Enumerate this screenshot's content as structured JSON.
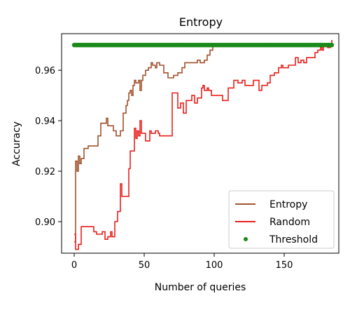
{
  "chart_data": {
    "type": "line",
    "title": "Entropy",
    "xlabel": "Number of queries",
    "ylabel": "Accuracy",
    "xlim": [
      -9,
      189
    ],
    "ylim": [
      0.8875,
      0.9745
    ],
    "xticks": [
      0,
      50,
      100,
      150
    ],
    "yticks": [
      0.9,
      0.92,
      0.94,
      0.96
    ],
    "xtick_labels": [
      "0",
      "50",
      "100",
      "150"
    ],
    "ytick_labels": [
      "0.90",
      "0.92",
      "0.94",
      "0.96"
    ],
    "grid": false,
    "legend_position": "lower-right",
    "series": [
      {
        "name": "Entropy",
        "color": "#a0522d",
        "style": "line",
        "points": [
          [
            0,
            0.892
          ],
          [
            1,
            0.924
          ],
          [
            2,
            0.92
          ],
          [
            3,
            0.926
          ],
          [
            4,
            0.923
          ],
          [
            5,
            0.925
          ],
          [
            7,
            0.929
          ],
          [
            10,
            0.93
          ],
          [
            14,
            0.93
          ],
          [
            17,
            0.934
          ],
          [
            19,
            0.939
          ],
          [
            22,
            0.939
          ],
          [
            23,
            0.941
          ],
          [
            24,
            0.938
          ],
          [
            28,
            0.936
          ],
          [
            30,
            0.934
          ],
          [
            32,
            0.934
          ],
          [
            33,
            0.936
          ],
          [
            35,
            0.943
          ],
          [
            37,
            0.946
          ],
          [
            38,
            0.948
          ],
          [
            39,
            0.951
          ],
          [
            40,
            0.952
          ],
          [
            41,
            0.95
          ],
          [
            42,
            0.954
          ],
          [
            43,
            0.956
          ],
          [
            44,
            0.955
          ],
          [
            46,
            0.956
          ],
          [
            47,
            0.952
          ],
          [
            48,
            0.956
          ],
          [
            49,
            0.958
          ],
          [
            51,
            0.96
          ],
          [
            53,
            0.961
          ],
          [
            55,
            0.963
          ],
          [
            56,
            0.962
          ],
          [
            58,
            0.961
          ],
          [
            59,
            0.963
          ],
          [
            61,
            0.962
          ],
          [
            64,
            0.959
          ],
          [
            66,
            0.959
          ],
          [
            67,
            0.957
          ],
          [
            71,
            0.958
          ],
          [
            74,
            0.959
          ],
          [
            77,
            0.961
          ],
          [
            79,
            0.963
          ],
          [
            88,
            0.964
          ],
          [
            90,
            0.963
          ],
          [
            93,
            0.964
          ],
          [
            95,
            0.966
          ],
          [
            97,
            0.968
          ],
          [
            99,
            0.97
          ]
        ]
      },
      {
        "name": "Random",
        "color": "#e8201c",
        "style": "line",
        "points": [
          [
            0,
            0.895
          ],
          [
            1,
            0.889
          ],
          [
            3,
            0.891
          ],
          [
            5,
            0.898
          ],
          [
            12,
            0.898
          ],
          [
            14,
            0.896
          ],
          [
            16,
            0.895
          ],
          [
            19,
            0.895
          ],
          [
            20,
            0.896
          ],
          [
            22,
            0.893
          ],
          [
            24,
            0.894
          ],
          [
            26,
            0.896
          ],
          [
            27,
            0.894
          ],
          [
            29,
            0.9
          ],
          [
            31,
            0.904
          ],
          [
            33,
            0.915
          ],
          [
            34,
            0.91
          ],
          [
            36,
            0.91
          ],
          [
            38,
            0.91
          ],
          [
            39,
            0.921
          ],
          [
            40,
            0.928
          ],
          [
            42,
            0.928
          ],
          [
            43,
            0.937
          ],
          [
            44,
            0.933
          ],
          [
            45,
            0.936
          ],
          [
            46,
            0.934
          ],
          [
            47,
            0.94
          ],
          [
            48,
            0.935
          ],
          [
            49,
            0.935
          ],
          [
            50,
            0.935
          ],
          [
            51,
            0.932
          ],
          [
            53,
            0.932
          ],
          [
            54,
            0.936
          ],
          [
            55,
            0.935
          ],
          [
            58,
            0.936
          ],
          [
            60,
            0.935
          ],
          [
            61,
            0.934
          ],
          [
            63,
            0.934
          ],
          [
            66,
            0.934
          ],
          [
            70,
            0.951
          ],
          [
            72,
            0.951
          ],
          [
            74,
            0.945
          ],
          [
            76,
            0.947
          ],
          [
            78,
            0.943
          ],
          [
            80,
            0.948
          ],
          [
            82,
            0.948
          ],
          [
            84,
            0.95
          ],
          [
            86,
            0.947
          ],
          [
            88,
            0.949
          ],
          [
            91,
            0.953
          ],
          [
            92,
            0.954
          ],
          [
            93,
            0.952
          ],
          [
            95,
            0.953
          ],
          [
            96,
            0.952
          ],
          [
            98,
            0.95
          ],
          [
            104,
            0.95
          ],
          [
            106,
            0.948
          ],
          [
            110,
            0.953
          ],
          [
            113,
            0.953
          ],
          [
            114,
            0.956
          ],
          [
            117,
            0.955
          ],
          [
            120,
            0.956
          ],
          [
            122,
            0.954
          ],
          [
            126,
            0.954
          ],
          [
            128,
            0.956
          ],
          [
            130,
            0.956
          ],
          [
            132,
            0.952
          ],
          [
            134,
            0.954
          ],
          [
            136,
            0.954
          ],
          [
            138,
            0.955
          ],
          [
            140,
            0.958
          ],
          [
            143,
            0.959
          ],
          [
            146,
            0.961
          ],
          [
            148,
            0.962
          ],
          [
            149,
            0.961
          ],
          [
            152,
            0.961
          ],
          [
            153,
            0.962
          ],
          [
            156,
            0.962
          ],
          [
            158,
            0.965
          ],
          [
            160,
            0.963
          ],
          [
            162,
            0.964
          ],
          [
            164,
            0.963
          ],
          [
            166,
            0.965
          ],
          [
            170,
            0.965
          ],
          [
            172,
            0.967
          ],
          [
            174,
            0.968
          ],
          [
            176,
            0.969
          ],
          [
            177,
            0.968
          ],
          [
            178,
            0.97
          ],
          [
            180,
            0.97
          ],
          [
            181,
            0.969
          ],
          [
            182,
            0.969
          ],
          [
            183,
            0.97
          ],
          [
            184,
            0.972
          ]
        ]
      },
      {
        "name": "Threshold",
        "color": "#1a8a1a",
        "style": "markers",
        "y": 0.97,
        "x_start": 0,
        "x_end": 184
      }
    ]
  }
}
